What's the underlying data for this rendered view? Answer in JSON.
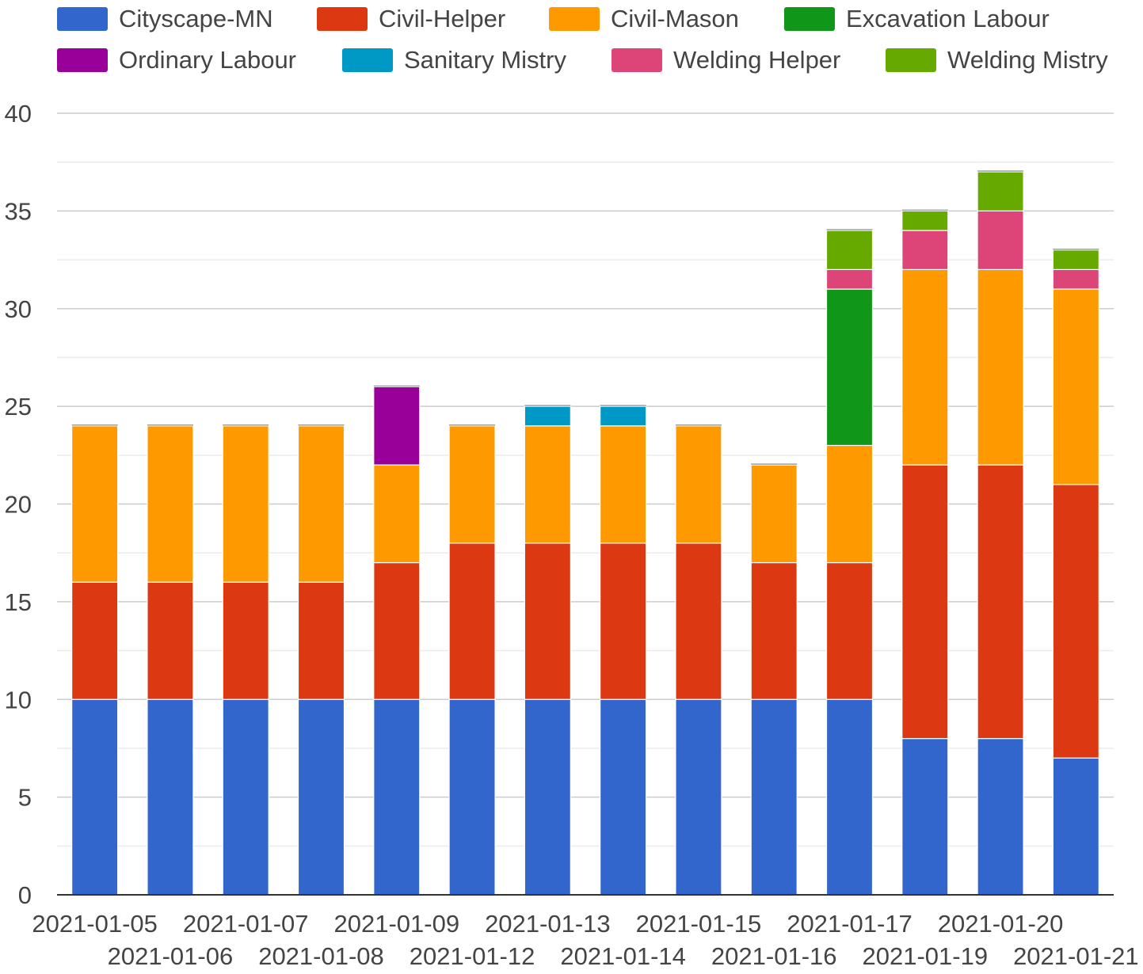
{
  "chart_data": {
    "type": "bar",
    "stacked": true,
    "categories": [
      "2021-01-05",
      "2021-01-06",
      "2021-01-07",
      "2021-01-08",
      "2021-01-09",
      "2021-01-12",
      "2021-01-13",
      "2021-01-14",
      "2021-01-15",
      "2021-01-16",
      "2021-01-17",
      "2021-01-19",
      "2021-01-20",
      "2021-01-21"
    ],
    "series": [
      {
        "name": "Cityscape-MN",
        "color": "#3366cc",
        "values": [
          10,
          10,
          10,
          10,
          10,
          10,
          10,
          10,
          10,
          10,
          10,
          8,
          8,
          7
        ]
      },
      {
        "name": "Civil-Helper",
        "color": "#dc3912",
        "values": [
          6,
          6,
          6,
          6,
          7,
          8,
          8,
          8,
          8,
          7,
          7,
          14,
          14,
          14
        ]
      },
      {
        "name": "Civil-Mason",
        "color": "#ff9900",
        "values": [
          8,
          8,
          8,
          8,
          5,
          6,
          6,
          6,
          6,
          5,
          6,
          10,
          10,
          10
        ]
      },
      {
        "name": "Excavation Labour",
        "color": "#109618",
        "values": [
          0,
          0,
          0,
          0,
          0,
          0,
          0,
          0,
          0,
          0,
          8,
          0,
          0,
          0
        ]
      },
      {
        "name": "Ordinary Labour",
        "color": "#990099",
        "values": [
          0,
          0,
          0,
          0,
          4,
          0,
          0,
          0,
          0,
          0,
          0,
          0,
          0,
          0
        ]
      },
      {
        "name": "Sanitary Mistry",
        "color": "#0099c6",
        "values": [
          0,
          0,
          0,
          0,
          0,
          0,
          1,
          1,
          0,
          0,
          0,
          0,
          0,
          0
        ]
      },
      {
        "name": "Welding Helper",
        "color": "#dd4477",
        "values": [
          0,
          0,
          0,
          0,
          0,
          0,
          0,
          0,
          0,
          0,
          1,
          2,
          3,
          1
        ]
      },
      {
        "name": "Welding Mistry",
        "color": "#66aa00",
        "values": [
          0,
          0,
          0,
          0,
          0,
          0,
          0,
          0,
          0,
          0,
          2,
          1,
          2,
          1
        ]
      }
    ],
    "ylim": [
      0,
      40
    ],
    "yticks": [
      0,
      5,
      10,
      15,
      20,
      25,
      30,
      35,
      40
    ],
    "legend_position": "top",
    "grid": true,
    "title": "",
    "xlabel": "",
    "ylabel": ""
  }
}
